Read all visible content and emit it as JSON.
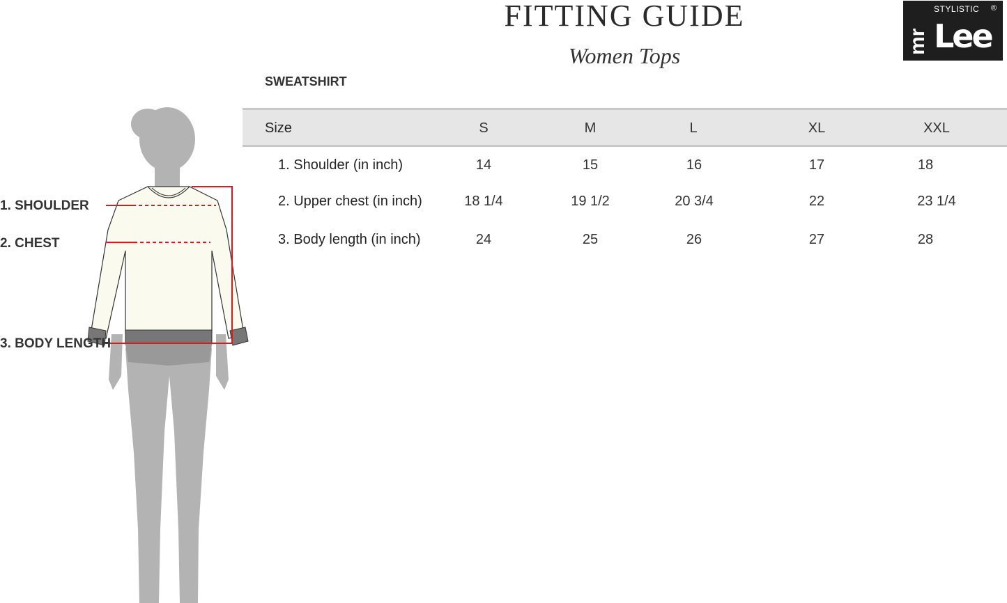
{
  "header": {
    "title": "FITTING GUIDE",
    "subtitle": "Women Tops"
  },
  "logo": {
    "text": "mr Lee",
    "tagline": "STYLISTIC",
    "mark": "®"
  },
  "section": "SWEATSHIRT",
  "table": {
    "columns": [
      "Size",
      "S",
      "M",
      "L",
      "XL",
      "XXL"
    ],
    "rows": [
      {
        "label": "1. Shoulder (in inch)",
        "values": [
          "14",
          "15",
          "16",
          "17",
          "18"
        ]
      },
      {
        "label": "2. Upper chest (in inch)",
        "values": [
          "18 1/4",
          "19 1/2",
          "20 3/4",
          "22",
          "23 1/4"
        ]
      },
      {
        "label": "3. Body length (in inch)",
        "values": [
          "24",
          "25",
          "26",
          "27",
          "28"
        ]
      }
    ]
  },
  "figure": {
    "labels": [
      "1. SHOULDER",
      "2. CHEST",
      "3. BODY LENGTH"
    ],
    "marker_color": "#e5161b"
  }
}
